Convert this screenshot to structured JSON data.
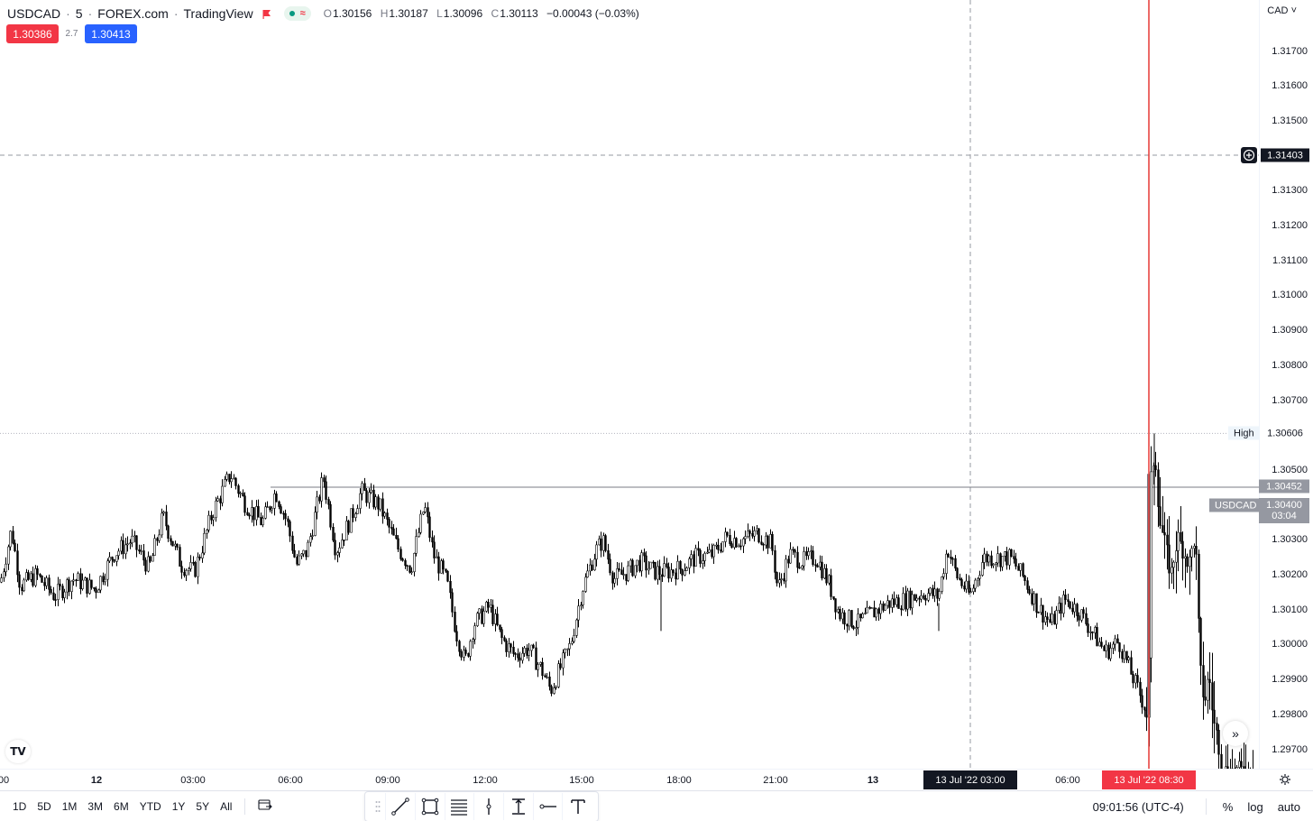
{
  "header": {
    "symbol": "USDCAD",
    "interval": "5",
    "exchange": "FOREX.com",
    "platform": "TradingView",
    "ohlc": {
      "open_label": "O",
      "open": "1.30156",
      "high_label": "H",
      "high": "1.30187",
      "low_label": "L",
      "low": "1.30096",
      "close_label": "C",
      "close": "1.30113",
      "change": "−0.00043 (−0.03%)"
    },
    "sell_price": "1.30386",
    "spread": "2.7",
    "buy_price": "1.30413",
    "wave_icon": "≈"
  },
  "price_axis": {
    "currency": "CAD",
    "ticks": [
      "1.31700",
      "1.31600",
      "1.31500",
      "1.31300",
      "1.31200",
      "1.31100",
      "1.31000",
      "1.30900",
      "1.30800",
      "1.30700",
      "1.30500",
      "1.30300",
      "1.30200",
      "1.30100",
      "1.30000",
      "1.29900",
      "1.29800",
      "1.29700"
    ],
    "crosshair_price": "1.31403",
    "high_label": "High",
    "high_value": "1.30606",
    "hline_value": "1.30452",
    "last_symbol": "USDCAD",
    "last_price": "1.30400",
    "countdown": "03:04"
  },
  "time_axis": {
    "ticks": [
      "00",
      "12",
      "03:00",
      "06:00",
      "09:00",
      "12:00",
      "15:00",
      "18:00",
      "21:00",
      "13",
      "06:00"
    ],
    "crosshair_time": "13 Jul '22   03:00",
    "marker_time": "13 Jul '22   08:30"
  },
  "bottom": {
    "ranges": [
      "1D",
      "5D",
      "1M",
      "3M",
      "6M",
      "YTD",
      "1Y",
      "5Y",
      "All"
    ],
    "clock": "09:01:56 (UTC-4)",
    "percent": "%",
    "log": "log",
    "auto": "auto"
  },
  "logo_text": "TV",
  "colors": {
    "sell": "#f23645",
    "buy": "#2962ff",
    "marker": "#e53935",
    "candle": "#000000"
  },
  "chart_data": {
    "type": "candlestick",
    "symbol": "USDCAD",
    "interval_minutes": 5,
    "ylim": [
      1.2965,
      1.318
    ],
    "x_ticks": [
      "00",
      "12",
      "03:00",
      "06:00",
      "09:00",
      "12:00",
      "15:00",
      "18:00",
      "21:00",
      "13",
      "06:00"
    ],
    "high_marker": 1.30606,
    "horizontal_line": 1.30452,
    "crosshair_price": 1.31403,
    "last_price": 1.304,
    "path": [
      [
        0,
        1.3018
      ],
      [
        12,
        1.3033
      ],
      [
        22,
        1.3017
      ],
      [
        40,
        1.302
      ],
      [
        60,
        1.3014
      ],
      [
        80,
        1.3019
      ],
      [
        105,
        1.3016
      ],
      [
        125,
        1.3026
      ],
      [
        145,
        1.303
      ],
      [
        165,
        1.3022
      ],
      [
        180,
        1.3037
      ],
      [
        200,
        1.3023
      ],
      [
        215,
        1.3021
      ],
      [
        235,
        1.3038
      ],
      [
        255,
        1.3049
      ],
      [
        270,
        1.3041
      ],
      [
        290,
        1.3035
      ],
      [
        305,
        1.3044
      ],
      [
        318,
        1.3035
      ],
      [
        328,
        1.3023
      ],
      [
        340,
        1.3027
      ],
      [
        358,
        1.3048
      ],
      [
        372,
        1.3027
      ],
      [
        388,
        1.3036
      ],
      [
        400,
        1.3044
      ],
      [
        420,
        1.304
      ],
      [
        440,
        1.3028
      ],
      [
        455,
        1.3022
      ],
      [
        470,
        1.304
      ],
      [
        480,
        1.3026
      ],
      [
        495,
        1.3018
      ],
      [
        505,
        1.3004
      ],
      [
        515,
        1.2995
      ],
      [
        525,
        1.3006
      ],
      [
        542,
        1.3011
      ],
      [
        555,
        1.3002
      ],
      [
        570,
        1.2997
      ],
      [
        585,
        1.2999
      ],
      [
        600,
        1.2993
      ],
      [
        610,
        1.2987
      ],
      [
        620,
        1.2993
      ],
      [
        632,
        1.3
      ],
      [
        645,
        1.3016
      ],
      [
        660,
        1.3027
      ],
      [
        668,
        1.303
      ],
      [
        680,
        1.3019
      ],
      [
        695,
        1.3021
      ],
      [
        710,
        1.3024
      ],
      [
        725,
        1.3021
      ],
      [
        740,
        1.3021
      ],
      [
        755,
        1.3022
      ],
      [
        770,
        1.3025
      ],
      [
        790,
        1.3026
      ],
      [
        805,
        1.3031
      ],
      [
        820,
        1.303
      ],
      [
        840,
        1.3032
      ],
      [
        855,
        1.3029
      ],
      [
        862,
        1.3016
      ],
      [
        875,
        1.3026
      ],
      [
        890,
        1.3024
      ],
      [
        905,
        1.3025
      ],
      [
        918,
        1.3018
      ],
      [
        930,
        1.3009
      ],
      [
        950,
        1.3006
      ],
      [
        965,
        1.3009
      ],
      [
        985,
        1.3012
      ],
      [
        1005,
        1.3013
      ],
      [
        1025,
        1.3015
      ],
      [
        1040,
        1.3014
      ],
      [
        1050,
        1.3028
      ],
      [
        1060,
        1.302
      ],
      [
        1075,
        1.3014
      ],
      [
        1090,
        1.3025
      ],
      [
        1105,
        1.3025
      ],
      [
        1120,
        1.3025
      ],
      [
        1135,
        1.3019
      ],
      [
        1150,
        1.3011
      ],
      [
        1165,
        1.3006
      ],
      [
        1180,
        1.3013
      ],
      [
        1195,
        1.301
      ],
      [
        1210,
        1.3004
      ],
      [
        1225,
        1.2998
      ],
      [
        1240,
        1.3001
      ],
      [
        1255,
        1.2991
      ],
      [
        1268,
        1.2983
      ],
      [
        1273,
        1.2978
      ],
      [
        1275,
        1.3045
      ],
      [
        1280,
        1.3056
      ],
      [
        1285,
        1.3036
      ],
      [
        1292,
        1.3028
      ],
      [
        1298,
        1.302
      ],
      [
        1305,
        1.3031
      ],
      [
        1312,
        1.3027
      ],
      [
        1318,
        1.3023
      ],
      [
        1325,
        1.3032
      ],
      [
        1330,
        1.2994
      ],
      [
        1335,
        1.2983
      ],
      [
        1340,
        1.2992
      ],
      [
        1345,
        1.2978
      ],
      [
        1350,
        1.2973
      ],
      [
        1355,
        1.2964
      ]
    ]
  }
}
